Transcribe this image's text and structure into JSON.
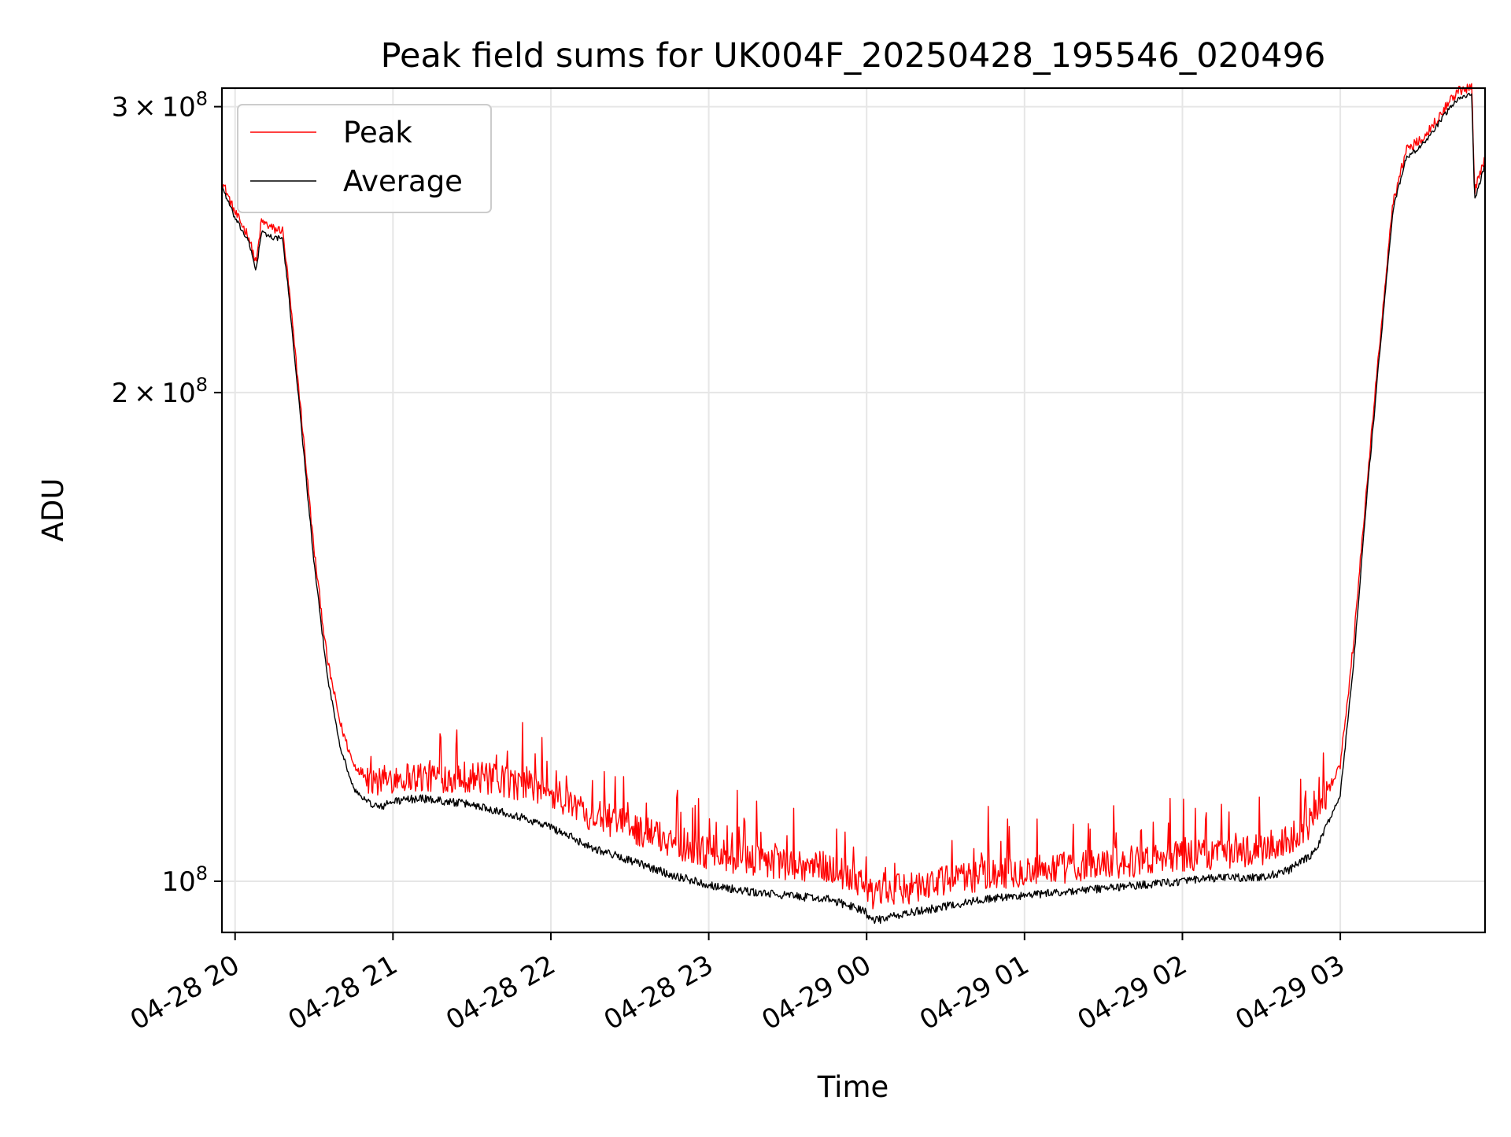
{
  "chart_data": {
    "type": "line",
    "title": "Peak field sums for UK004F_20250428_195546_020496",
    "xlabel": "Time",
    "ylabel": "ADU",
    "y_scale": "log",
    "grid": true,
    "legend_position": "upper-left",
    "xlim": [
      "2025-04-28 19:55",
      "2025-04-29 03:55"
    ],
    "ylim": [
      93000000,
      308000000
    ],
    "x_ticks": [
      "04-28 20",
      "04-28 21",
      "04-28 22",
      "04-28 23",
      "04-29 00",
      "04-29 01",
      "04-29 02",
      "04-29 03"
    ],
    "x_tick_times": [
      "2025-04-28 20:00",
      "2025-04-28 21:00",
      "2025-04-28 22:00",
      "2025-04-28 23:00",
      "2025-04-29 00:00",
      "2025-04-29 01:00",
      "2025-04-29 02:00",
      "2025-04-29 03:00"
    ],
    "y_ticks": [
      {
        "value": 300000000,
        "mantissa": "3",
        "times": "×",
        "base": "10",
        "exp": "8"
      },
      {
        "value": 200000000,
        "mantissa": "2",
        "times": "×",
        "base": "10",
        "exp": "8"
      },
      {
        "value": 100000000,
        "mantissa": "",
        "times": "",
        "base": "10",
        "exp": "8"
      }
    ],
    "series": [
      {
        "name": "Peak",
        "color": "#ff0000",
        "x": [
          "2025-04-28 19:55",
          "2025-04-28 20:00",
          "2025-04-28 20:05",
          "2025-04-28 20:08",
          "2025-04-28 20:10",
          "2025-04-28 20:15",
          "2025-04-28 20:18",
          "2025-04-28 20:20",
          "2025-04-28 20:25",
          "2025-04-28 20:30",
          "2025-04-28 20:35",
          "2025-04-28 20:40",
          "2025-04-28 20:45",
          "2025-04-28 20:50",
          "2025-04-28 20:55",
          "2025-04-28 21:00",
          "2025-04-28 21:10",
          "2025-04-28 21:20",
          "2025-04-28 21:30",
          "2025-04-28 21:45",
          "2025-04-28 22:00",
          "2025-04-28 22:15",
          "2025-04-28 22:30",
          "2025-04-28 22:45",
          "2025-04-28 23:00",
          "2025-04-28 23:15",
          "2025-04-28 23:30",
          "2025-04-28 23:45",
          "2025-04-28 23:59",
          "2025-04-29 00:02",
          "2025-04-29 00:15",
          "2025-04-29 00:30",
          "2025-04-29 00:45",
          "2025-04-29 01:00",
          "2025-04-29 01:15",
          "2025-04-29 01:30",
          "2025-04-29 01:45",
          "2025-04-29 02:00",
          "2025-04-29 02:15",
          "2025-04-29 02:30",
          "2025-04-29 02:40",
          "2025-04-29 02:50",
          "2025-04-29 03:00",
          "2025-04-29 03:05",
          "2025-04-29 03:10",
          "2025-04-29 03:15",
          "2025-04-29 03:20",
          "2025-04-29 03:25",
          "2025-04-29 03:30",
          "2025-04-29 03:35",
          "2025-04-29 03:40",
          "2025-04-29 03:45",
          "2025-04-29 03:50",
          "2025-04-29 03:51",
          "2025-04-29 03:55"
        ],
        "y": [
          270000000,
          258000000,
          250000000,
          240000000,
          255000000,
          252000000,
          252000000,
          236000000,
          195000000,
          160000000,
          137000000,
          125000000,
          118000000,
          116000000,
          115000000,
          116000000,
          116000000,
          116000000,
          116000000,
          115000000,
          113000000,
          110000000,
          108000000,
          106000000,
          104000000,
          103000000,
          102500000,
          102000000,
          100000000,
          98000000,
          99000000,
          100000000,
          101000000,
          101500000,
          102000000,
          102500000,
          103000000,
          103500000,
          104000000,
          104500000,
          106000000,
          109000000,
          118000000,
          140000000,
          175000000,
          215000000,
          262000000,
          282000000,
          286000000,
          292000000,
          300000000,
          307000000,
          308000000,
          266000000,
          279000000
        ]
      },
      {
        "name": "Average",
        "color": "#000000",
        "x": [
          "2025-04-28 19:55",
          "2025-04-28 20:00",
          "2025-04-28 20:05",
          "2025-04-28 20:08",
          "2025-04-28 20:10",
          "2025-04-28 20:15",
          "2025-04-28 20:18",
          "2025-04-28 20:20",
          "2025-04-28 20:25",
          "2025-04-28 20:30",
          "2025-04-28 20:35",
          "2025-04-28 20:40",
          "2025-04-28 20:45",
          "2025-04-28 20:50",
          "2025-04-28 20:55",
          "2025-04-28 21:00",
          "2025-04-28 21:10",
          "2025-04-28 21:20",
          "2025-04-28 21:30",
          "2025-04-28 21:45",
          "2025-04-28 22:00",
          "2025-04-28 22:15",
          "2025-04-28 22:30",
          "2025-04-28 22:45",
          "2025-04-28 23:00",
          "2025-04-28 23:15",
          "2025-04-28 23:30",
          "2025-04-28 23:45",
          "2025-04-28 23:59",
          "2025-04-29 00:02",
          "2025-04-29 00:15",
          "2025-04-29 00:30",
          "2025-04-29 00:45",
          "2025-04-29 01:00",
          "2025-04-29 01:15",
          "2025-04-29 01:30",
          "2025-04-29 01:45",
          "2025-04-29 02:00",
          "2025-04-29 02:15",
          "2025-04-29 02:30",
          "2025-04-29 02:40",
          "2025-04-29 02:50",
          "2025-04-29 03:00",
          "2025-04-29 03:05",
          "2025-04-29 03:10",
          "2025-04-29 03:15",
          "2025-04-29 03:20",
          "2025-04-29 03:25",
          "2025-04-29 03:30",
          "2025-04-29 03:35",
          "2025-04-29 03:40",
          "2025-04-29 03:45",
          "2025-04-29 03:50",
          "2025-04-29 03:51",
          "2025-04-29 03:55"
        ],
        "y": [
          268000000,
          256000000,
          248000000,
          238000000,
          251000000,
          249000000,
          249000000,
          233000000,
          192000000,
          157000000,
          134000000,
          121000000,
          114000000,
          112000000,
          111000000,
          112000000,
          112500000,
          112000000,
          111500000,
          110000000,
          108000000,
          105000000,
          103000000,
          101000000,
          99500000,
          98500000,
          98000000,
          97500000,
          96000000,
          94500000,
          95500000,
          96500000,
          97500000,
          98000000,
          98500000,
          99000000,
          99500000,
          100000000,
          100500000,
          100500000,
          101500000,
          104000000,
          113000000,
          136000000,
          172000000,
          212000000,
          259000000,
          279000000,
          283000000,
          289000000,
          297000000,
          304000000,
          305000000,
          263000000,
          276000000
        ]
      }
    ]
  }
}
